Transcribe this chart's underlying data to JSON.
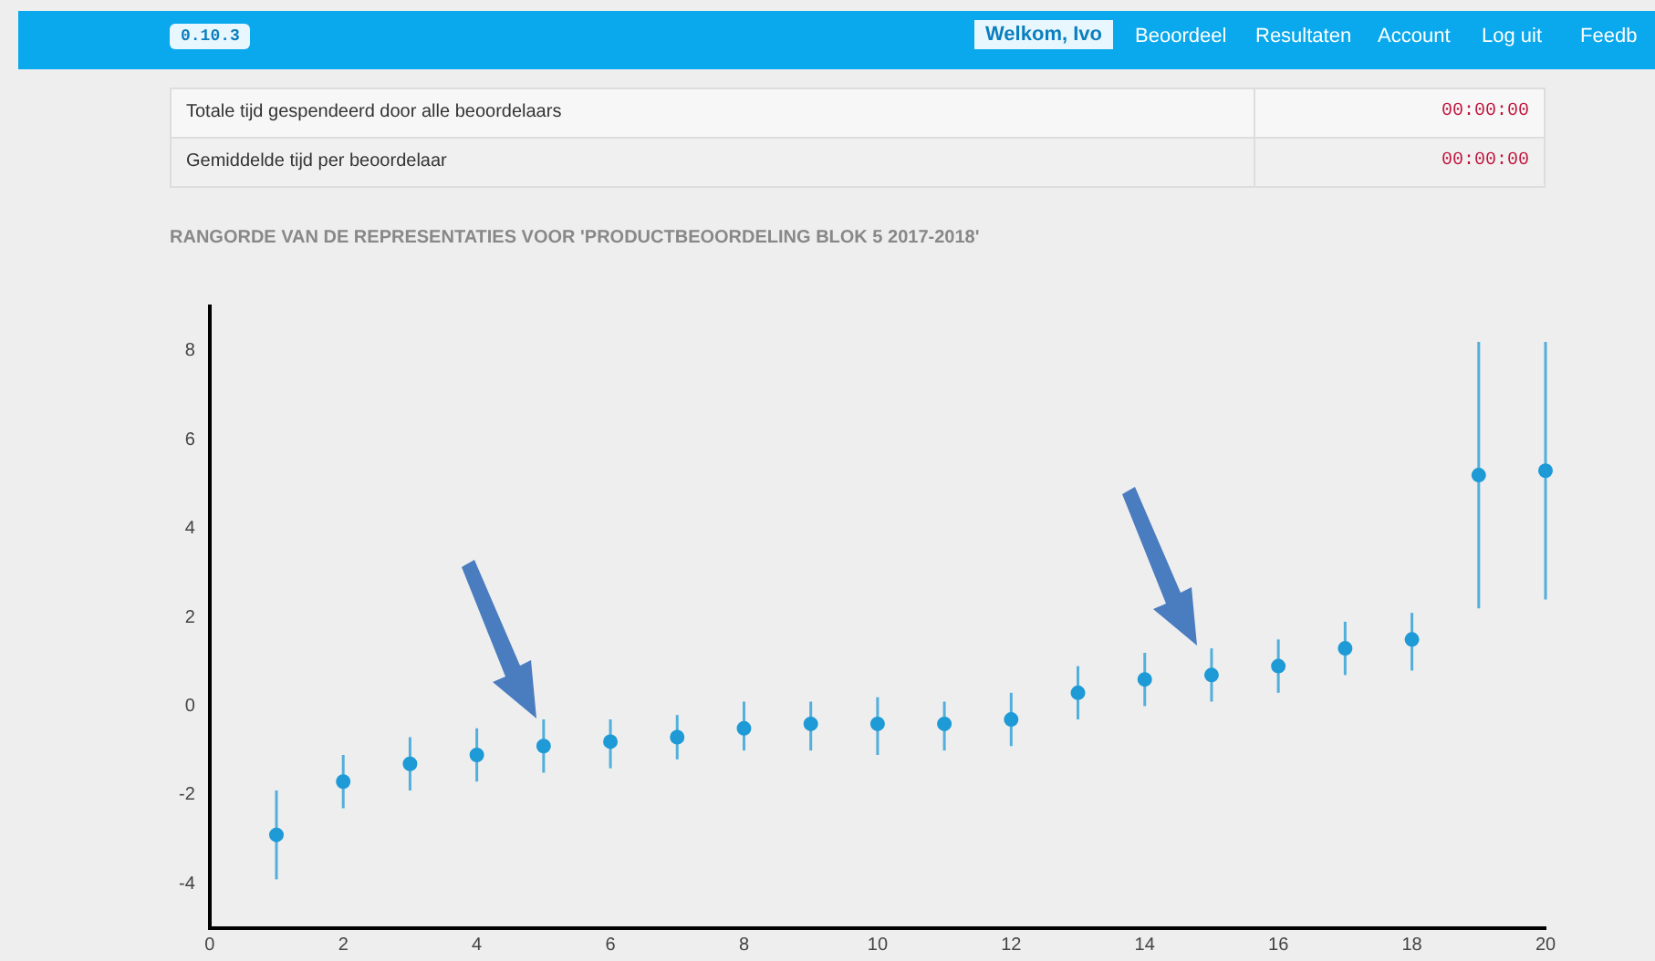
{
  "chart_data": {
    "type": "scatter",
    "title": "RANGORDE VAN DE REPRESENTATIES VOOR 'PRODUCTBEOORDELING BLOK 5 2017-2018'",
    "x": [
      1,
      2,
      3,
      4,
      5,
      6,
      7,
      8,
      9,
      10,
      11,
      12,
      13,
      14,
      15,
      16,
      17,
      18,
      19,
      20
    ],
    "series": [
      {
        "color": "#1e9ad6",
        "values": [
          -2.9,
          -1.7,
          -1.3,
          -1.1,
          -0.9,
          -0.8,
          -0.7,
          -0.5,
          -0.4,
          -0.4,
          -0.4,
          -0.3,
          0.3,
          0.6,
          0.7,
          0.9,
          1.3,
          1.5,
          5.2,
          5.3
        ],
        "errors": [
          [
            -3.9,
            -1.9
          ],
          [
            -2.3,
            -1.1
          ],
          [
            -1.9,
            -0.7
          ],
          [
            -1.7,
            -0.5
          ],
          [
            -1.5,
            -0.3
          ],
          [
            -1.4,
            -0.3
          ],
          [
            -1.2,
            -0.2
          ],
          [
            -1.0,
            0.1
          ],
          [
            -1.0,
            0.1
          ],
          [
            -1.1,
            0.2
          ],
          [
            -1.0,
            0.1
          ],
          [
            -0.9,
            0.3
          ],
          [
            -0.3,
            0.9
          ],
          [
            0.0,
            1.2
          ],
          [
            0.1,
            1.3
          ],
          [
            0.3,
            1.5
          ],
          [
            0.7,
            1.9
          ],
          [
            0.8,
            2.1
          ],
          [
            2.2,
            8.2
          ],
          [
            2.4,
            8.2
          ]
        ]
      }
    ],
    "xlim": [
      0,
      20
    ],
    "xticks": [
      0,
      2,
      4,
      6,
      8,
      10,
      12,
      14,
      16,
      18,
      20
    ],
    "ylim": [
      -5,
      9
    ],
    "yticks": [
      -4,
      -2,
      0,
      2,
      4,
      6,
      8
    ],
    "grid": false,
    "legend": false,
    "marker": "circle",
    "annotations": [
      "0.10.3",
      "Welkom, Ivo",
      "Beoordeel",
      "Resultaten",
      "Account",
      "Log uit",
      "Feedb",
      "Totale tijd gespendeerd door alle beoordelaars",
      "00:00:00",
      "Gemiddelde tijd per beoordelaar",
      "00:00:00"
    ]
  }
}
